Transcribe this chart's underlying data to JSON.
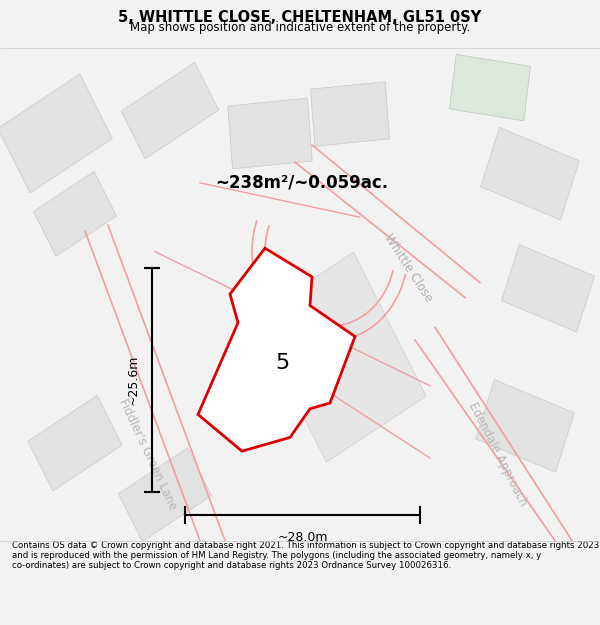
{
  "title": "5, WHITTLE CLOSE, CHELTENHAM, GL51 0SY",
  "subtitle": "Map shows position and indicative extent of the property.",
  "footer": "Contains OS data © Crown copyright and database right 2021. This information is subject to Crown copyright and database rights 2023 and is reproduced with the permission of HM Land Registry. The polygons (including the associated geometry, namely x, y co-ordinates) are subject to Crown copyright and database rights 2023 Ordnance Survey 100026316.",
  "area_label": "~238m²/~0.059ac.",
  "plot_number": "5",
  "dim_width": "~28.0m",
  "dim_height": "~25.6m",
  "street_whittle": "Whittle Close",
  "street_fiddler": "Fiddler's Green Lane",
  "street_edendale": "Edendale Approach",
  "bg_color": "#f2f2f2",
  "plot_fill": "#ffffff",
  "plot_outline": "#dd0000",
  "road_color": "#f0a0a0",
  "building_fill": "#e2e2e2",
  "building_outline": "#c8c8c8",
  "green_fill": "#dde8dd"
}
